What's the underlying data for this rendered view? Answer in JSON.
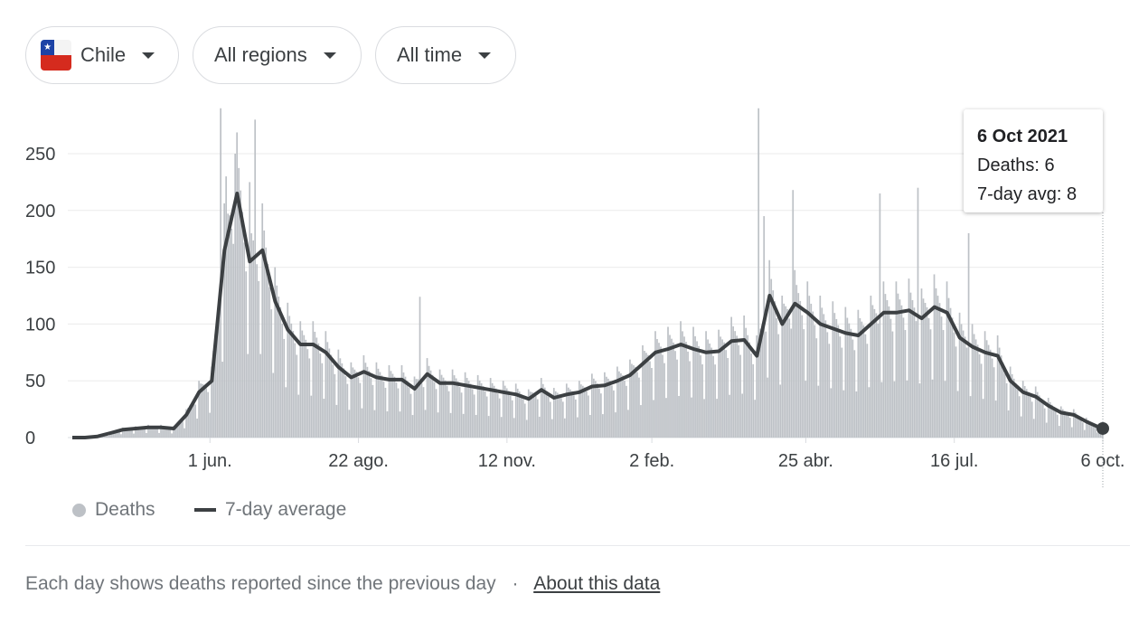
{
  "filters": {
    "country": "Chile",
    "region": "All regions",
    "time": "All time"
  },
  "tooltip": {
    "date": "6 Oct 2021",
    "deaths": "Deaths: 6",
    "avg": "7-day avg: 8"
  },
  "legend": {
    "deaths": "Deaths",
    "average": "7-day average"
  },
  "footer": {
    "text": "Each day shows deaths reported since the previous day",
    "separator": "·",
    "link": "About this data"
  },
  "colors": {
    "bars": "#bdc1c6",
    "line": "#3c4043",
    "grid": "#ebebeb",
    "flag_red": "#d52b1e",
    "flag_blue": "#1d43a6"
  },
  "chart_data": {
    "type": "bar",
    "title": "",
    "xlabel": "",
    "ylabel": "Deaths",
    "ylim": [
      0,
      290
    ],
    "yticks": [
      0,
      50,
      100,
      150,
      200,
      250
    ],
    "xticks": [
      {
        "label": "1 jun.",
        "day": 76
      },
      {
        "label": "22 ago.",
        "day": 158
      },
      {
        "label": "12 nov.",
        "day": 240
      },
      {
        "label": "2 feb.",
        "day": 320
      },
      {
        "label": "25 abr.",
        "day": 405
      },
      {
        "label": "16 jul.",
        "day": 487
      },
      {
        "label": "6 oct.",
        "day": 569
      }
    ],
    "total_days": 569,
    "grid": true,
    "legend_position": "bottom-left",
    "series": [
      {
        "name": "7-day average",
        "type": "line",
        "step_days": 7,
        "values": [
          0,
          0,
          1,
          4,
          7,
          8,
          9,
          9,
          8,
          20,
          40,
          50,
          165,
          215,
          155,
          165,
          120,
          95,
          82,
          82,
          75,
          62,
          53,
          58,
          53,
          51,
          51,
          43,
          56,
          48,
          48,
          46,
          44,
          42,
          40,
          38,
          34,
          42,
          35,
          38,
          40,
          45,
          46,
          50,
          55,
          65,
          75,
          78,
          82,
          78,
          75,
          76,
          85,
          86,
          72,
          125,
          100,
          118,
          110,
          100,
          96,
          92,
          90,
          100,
          110,
          110,
          112,
          105,
          115,
          110,
          88,
          80,
          75,
          72,
          50,
          40,
          36,
          28,
          22,
          20,
          14,
          9,
          8
        ]
      },
      {
        "name": "Deaths",
        "type": "bar",
        "weekday_factors": [
          1.25,
          1.15,
          1.1,
          1.05,
          0.95,
          0.85,
          0.45
        ],
        "spikes": [
          {
            "day": 82,
            "value": 290
          },
          {
            "day": 85,
            "value": 230
          },
          {
            "day": 90,
            "value": 250
          },
          {
            "day": 101,
            "value": 280
          },
          {
            "day": 98,
            "value": 225
          },
          {
            "day": 192,
            "value": 124
          },
          {
            "day": 379,
            "value": 290
          },
          {
            "day": 382,
            "value": 195
          },
          {
            "day": 398,
            "value": 218
          },
          {
            "day": 446,
            "value": 215
          },
          {
            "day": 467,
            "value": 220
          },
          {
            "day": 495,
            "value": 180
          }
        ]
      }
    ],
    "highlight": {
      "date": "6 Oct 2021",
      "deaths": 6,
      "avg": 8
    }
  }
}
